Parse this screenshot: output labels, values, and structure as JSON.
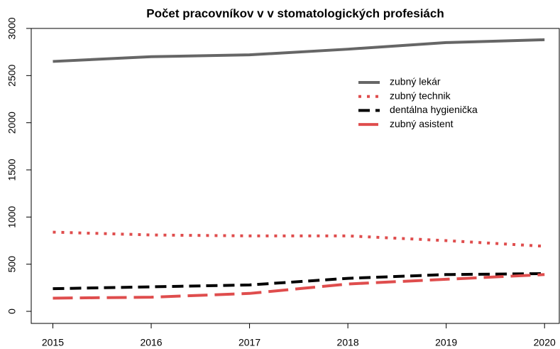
{
  "chart_data": {
    "type": "line",
    "title": "Počet pracovníkov v v stomatologických profesiách",
    "x": [
      2015,
      2016,
      2017,
      2018,
      2019,
      2020
    ],
    "series": [
      {
        "name": "zubný lekár",
        "color": "#666666",
        "line_style": "solid",
        "values": [
          2650,
          2700,
          2720,
          2780,
          2850,
          2880
        ]
      },
      {
        "name": "zubný technik",
        "color": "#df4d4d",
        "line_style": "dotted",
        "values": [
          840,
          810,
          800,
          800,
          750,
          690
        ]
      },
      {
        "name": "dentálna hygienička",
        "color": "#000000",
        "line_style": "dashed",
        "values": [
          240,
          260,
          280,
          350,
          390,
          400
        ]
      },
      {
        "name": "zubný asistent",
        "color": "#df4d4d",
        "line_style": "longdash",
        "values": [
          140,
          150,
          190,
          290,
          340,
          390
        ]
      }
    ],
    "xlim": [
      2014.78,
      2020.15
    ],
    "xticks": [
      2015,
      2016,
      2017,
      2018,
      2019,
      2020
    ],
    "ylim": [
      -128,
      3000
    ],
    "yticks": [
      0,
      500,
      1000,
      1500,
      2000,
      2500,
      3000
    ],
    "legend": "topright"
  }
}
